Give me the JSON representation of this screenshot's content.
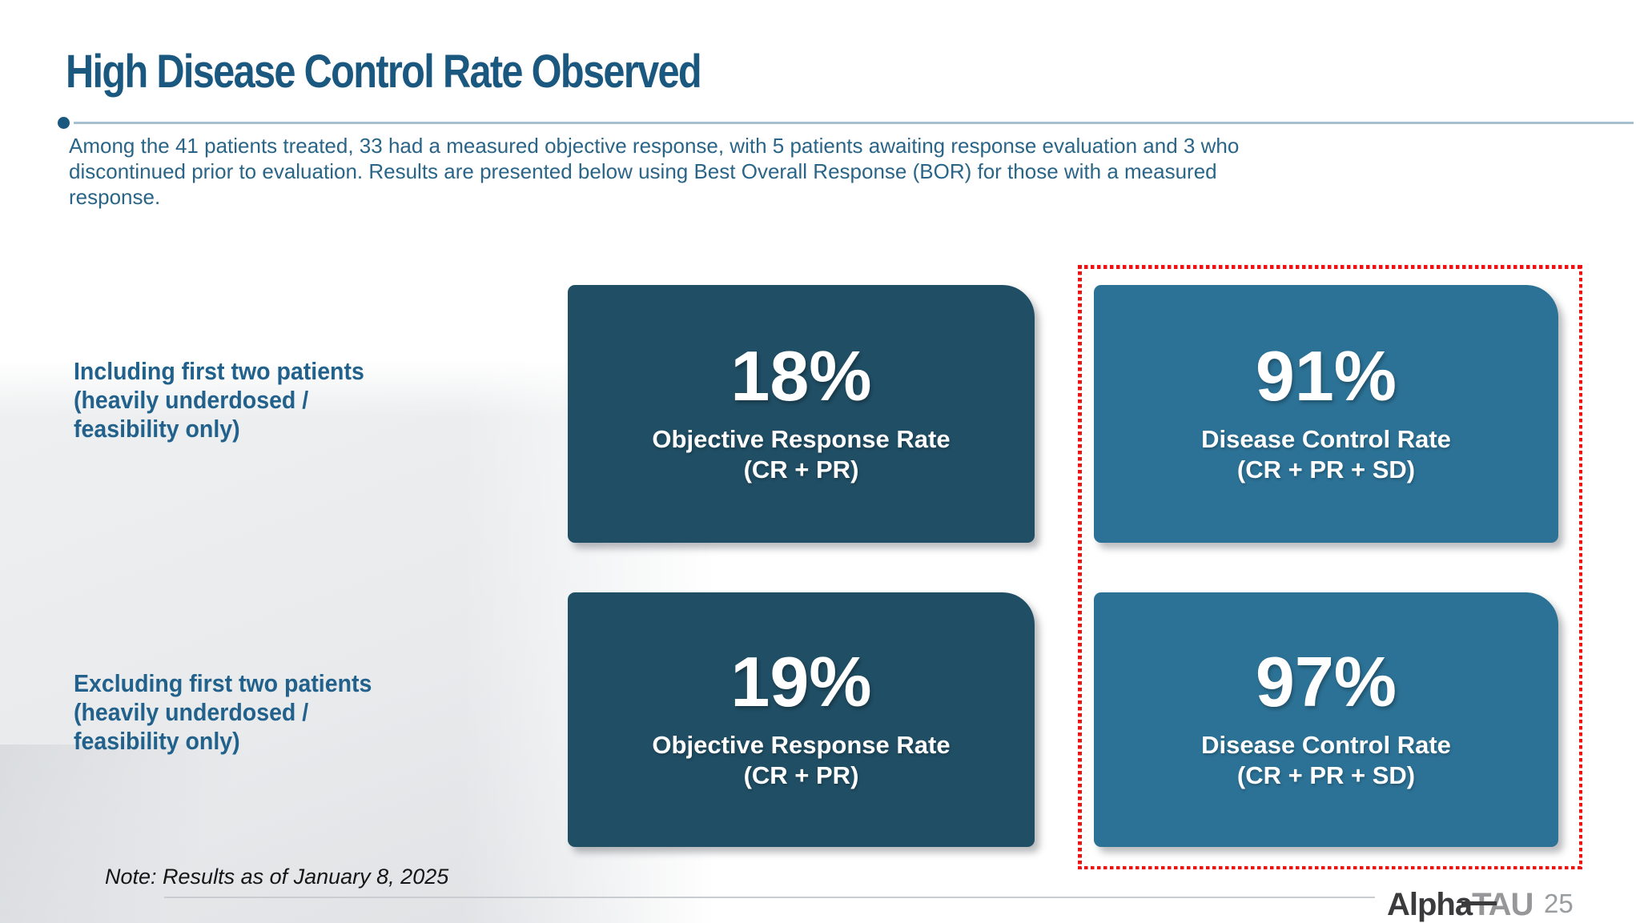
{
  "slide": {
    "title": "High Disease Control Rate Observed",
    "intro": "Among the 41 patients treated, 33 had a measured objective response, with 5 patients awaiting response evaluation and 3 who discontinued prior to evaluation.  Results are presented below using Best Overall Response (BOR) for those with a measured response.",
    "rows": [
      {
        "label": "Including first two patients\n(heavily underdosed /\nfeasibility only)",
        "orr_value": "18%",
        "orr_label": "Objective Response Rate",
        "orr_sub": "(CR + PR)",
        "dcr_value": "91%",
        "dcr_label": "Disease Control Rate",
        "dcr_sub": "(CR + PR + SD)"
      },
      {
        "label": "Excluding first two patients\n(heavily underdosed /\nfeasibility only)",
        "orr_value": "19%",
        "orr_label": "Objective Response Rate",
        "orr_sub": "(CR + PR)",
        "dcr_value": "97%",
        "dcr_label": "Disease Control Rate",
        "dcr_sub": "(CR + PR + SD)"
      }
    ],
    "note": "Note: Results as of January 8, 2025",
    "footer": {
      "logo_primary": "Alpha",
      "logo_secondary": "TAU",
      "page_number": "25"
    },
    "colors": {
      "title": "#1b5880",
      "body_text": "#2a6588",
      "label_text": "#21618b",
      "dark_box": "#204e64",
      "light_box": "#2c7296",
      "highlight_border": "#ee1111",
      "underline": "#a6c0d0"
    }
  }
}
